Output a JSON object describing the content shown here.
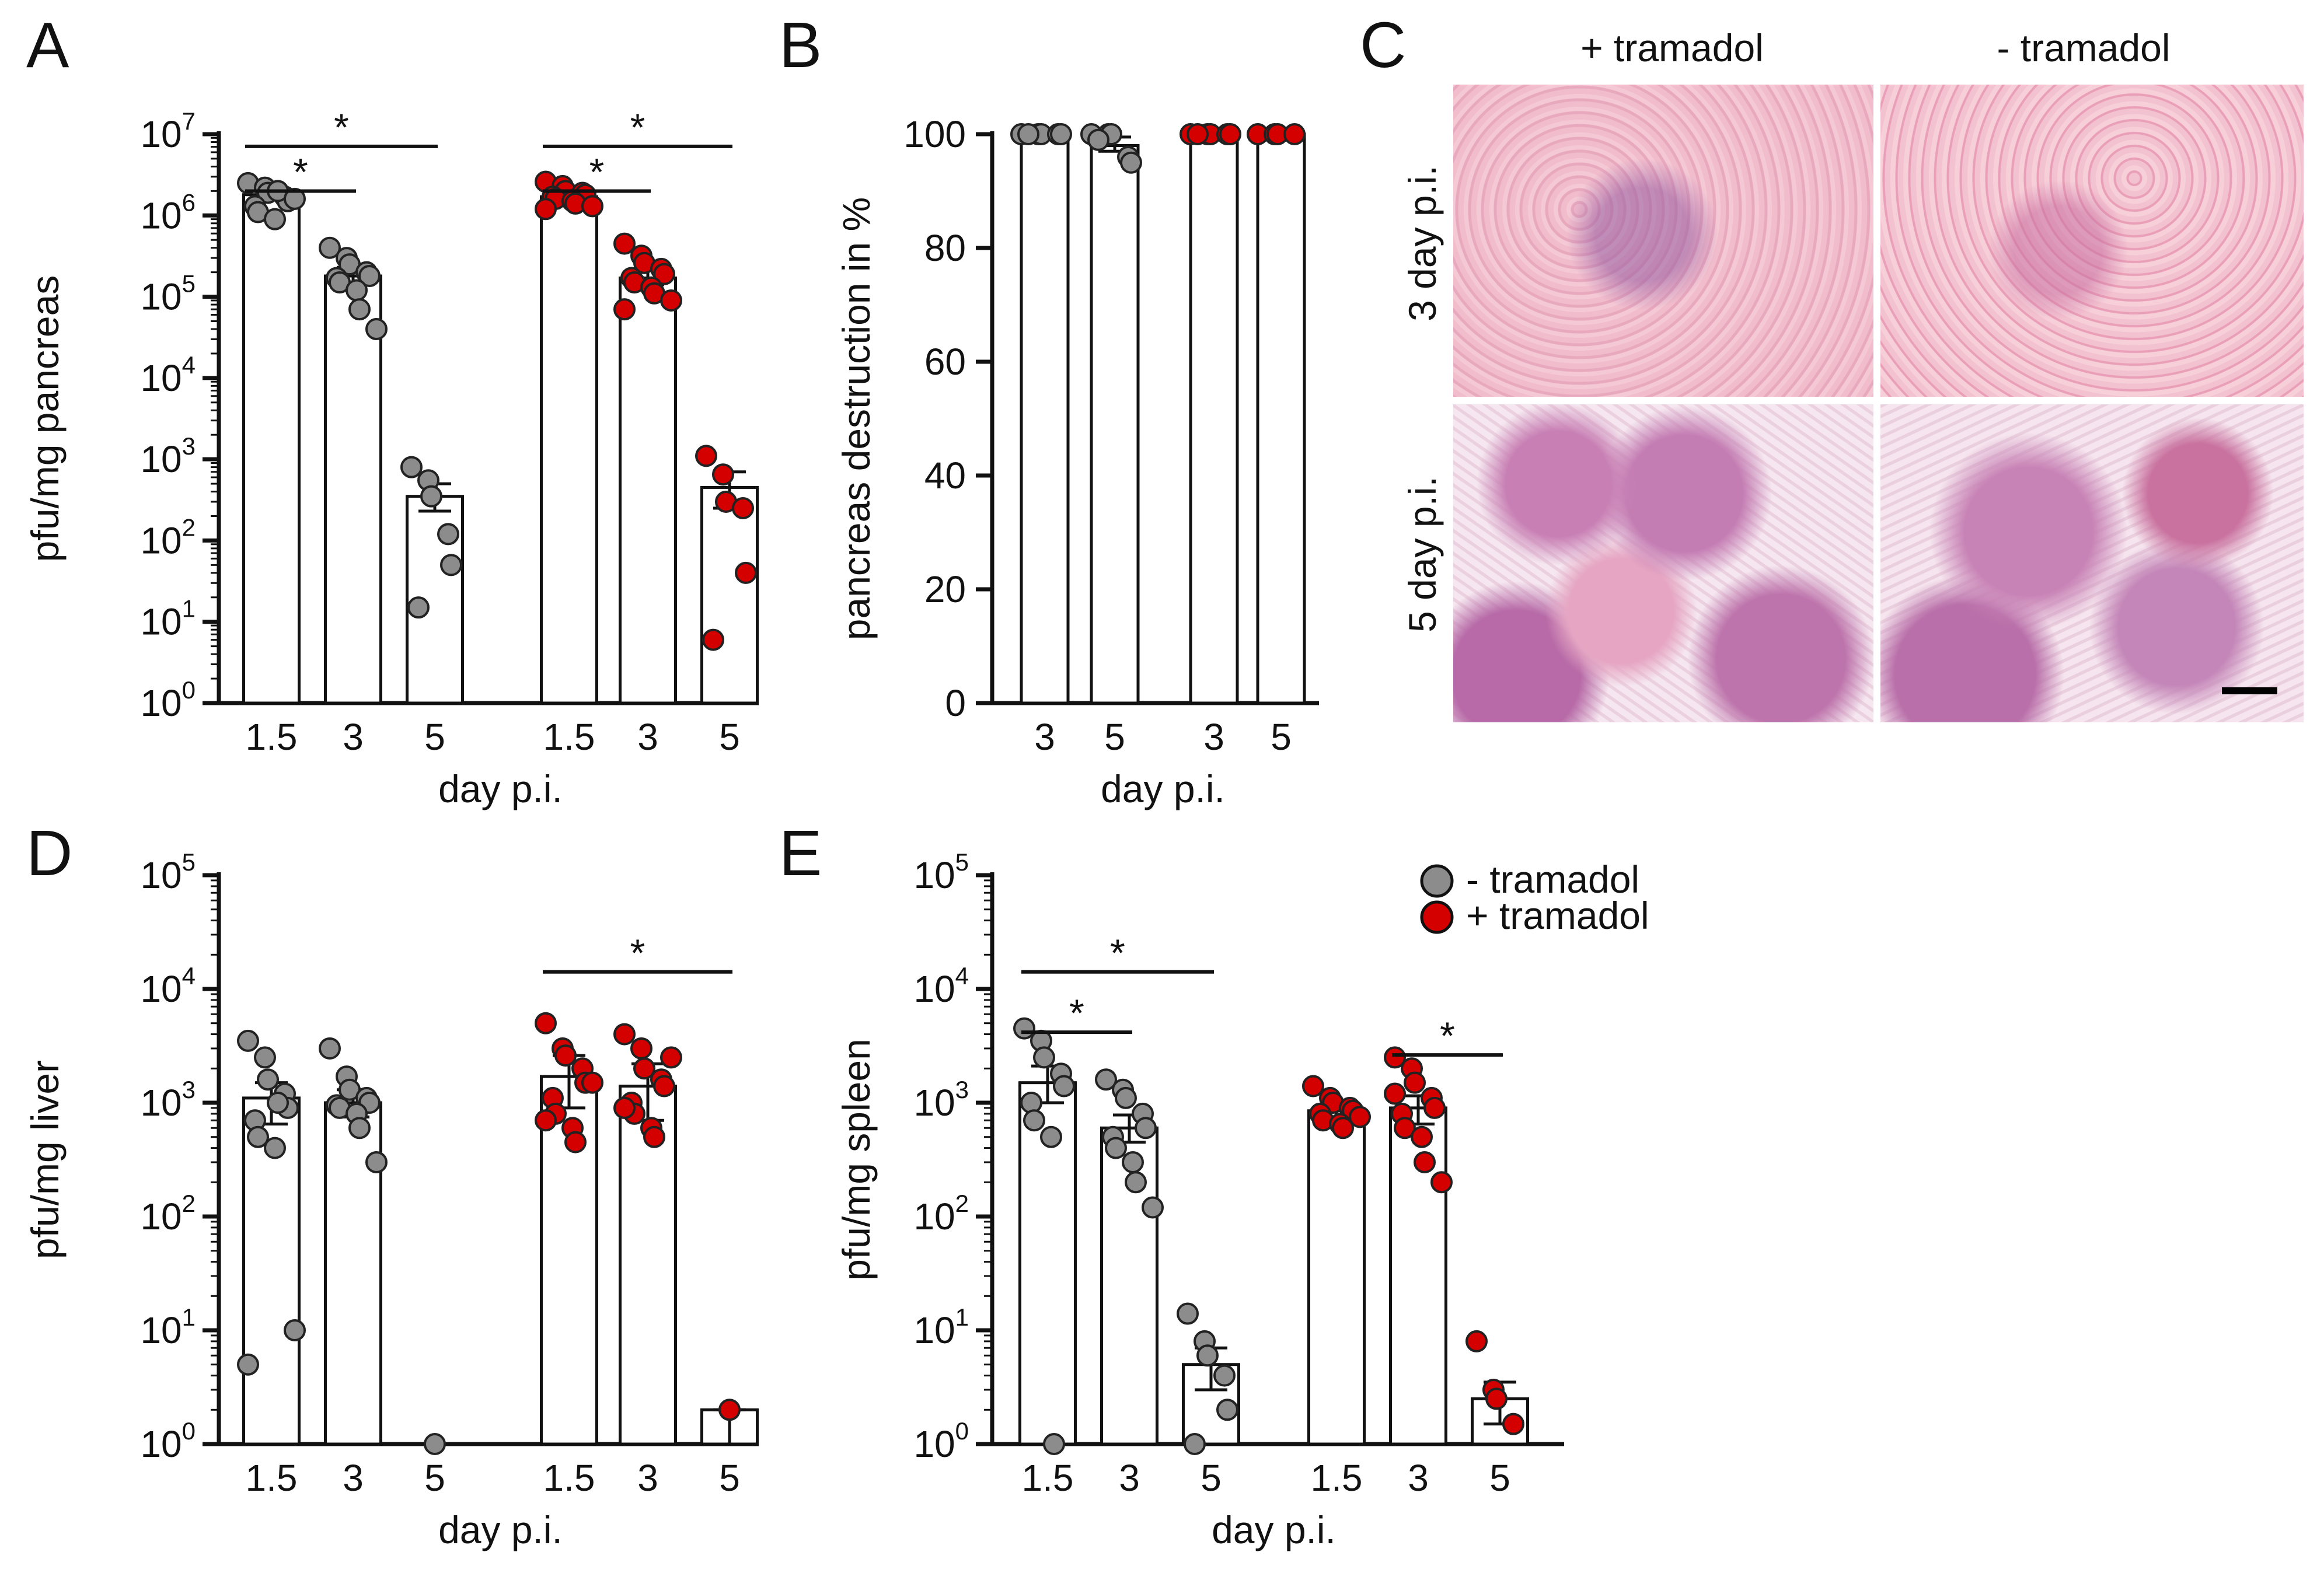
{
  "panels": {
    "A": "A",
    "B": "B",
    "C": "C",
    "D": "D",
    "E": "E"
  },
  "colors": {
    "minus_tramadol": "#8c8c8c",
    "plus_tramadol": "#d40000"
  },
  "histology": {
    "col_labels": [
      "+ tramadol",
      "- tramadol"
    ],
    "row_labels": [
      "3 day p.i.",
      "5 day p.i."
    ]
  },
  "legend": {
    "minus_label": "- tramadol",
    "plus_label": "+ tramadol"
  },
  "chart_data": [
    {
      "id": "A",
      "type": "bar",
      "yscale": "log",
      "ylabel": "pfu/mg pancreas",
      "xlabel": "day p.i.",
      "ylim": [
        1,
        10000000
      ],
      "ytick_powers": [
        0,
        1,
        2,
        3,
        4,
        5,
        6,
        7
      ],
      "categories": [
        "1.5",
        "3",
        "5",
        "1.5",
        "3",
        "5"
      ],
      "series": [
        {
          "name": "- tramadol",
          "color": "#8c8c8c",
          "groups": [
            {
              "label": "1.5",
              "mean": 1800000,
              "sem_low": 1600000,
              "sem_high": 2000000,
              "points": [
                2500000,
                2200000,
                1900000,
                1700000,
                1500000,
                1300000,
                1100000,
                900000,
                2000000,
                1600000
              ]
            },
            {
              "label": "3",
              "mean": 180000,
              "sem_low": 140000,
              "sem_high": 230000,
              "points": [
                400000,
                300000,
                250000,
                200000,
                180000,
                170000,
                150000,
                120000,
                70000,
                40000
              ]
            },
            {
              "label": "5",
              "mean": 350,
              "sem_low": 230,
              "sem_high": 500,
              "points": [
                800,
                550,
                350,
                120,
                50,
                15
              ]
            }
          ]
        },
        {
          "name": "+ tramadol",
          "color": "#d40000",
          "groups": [
            {
              "label": "1.5",
              "mean": 1700000,
              "sem_low": 1550000,
              "sem_high": 1900000,
              "points": [
                2600000,
                2300000,
                2000000,
                1900000,
                1800000,
                1700000,
                1600000,
                1500000,
                1400000,
                1300000,
                1200000
              ]
            },
            {
              "label": "3",
              "mean": 170000,
              "sem_low": 140000,
              "sem_high": 210000,
              "points": [
                450000,
                320000,
                260000,
                220000,
                190000,
                170000,
                150000,
                130000,
                110000,
                90000,
                70000
              ]
            },
            {
              "label": "5",
              "mean": 450,
              "sem_low": 250,
              "sem_high": 700,
              "points": [
                1100,
                650,
                300,
                250,
                40,
                6
              ]
            }
          ]
        }
      ],
      "significance": [
        {
          "from": 0,
          "to": 2,
          "level": 6.85,
          "label": "*"
        },
        {
          "from": 0,
          "to": 1,
          "level": 6.3,
          "label": "*"
        },
        {
          "from": 3,
          "to": 5,
          "level": 6.85,
          "label": "*"
        },
        {
          "from": 3,
          "to": 4,
          "level": 6.3,
          "label": "*"
        }
      ]
    },
    {
      "id": "B",
      "type": "bar",
      "yscale": "linear",
      "ylabel": "pancreas destruction in %",
      "xlabel": "day p.i.",
      "ylim": [
        0,
        100
      ],
      "yticks": [
        0,
        20,
        40,
        60,
        80,
        100
      ],
      "categories": [
        "3",
        "5",
        "3",
        "5"
      ],
      "series": [
        {
          "name": "- tramadol",
          "color": "#8c8c8c",
          "groups": [
            {
              "label": "3",
              "mean": 100,
              "sem_low": 100,
              "sem_high": 100,
              "points": [
                100,
                100,
                100,
                100,
                100,
                100
              ]
            },
            {
              "label": "5",
              "mean": 98,
              "sem_low": 97,
              "sem_high": 99.5,
              "points": [
                100,
                100,
                100,
                96,
                95,
                99
              ]
            }
          ]
        },
        {
          "name": "+ tramadol",
          "color": "#d40000",
          "groups": [
            {
              "label": "3",
              "mean": 100,
              "sem_low": 100,
              "sem_high": 100,
              "points": [
                100,
                100,
                100,
                100,
                100,
                100
              ]
            },
            {
              "label": "5",
              "mean": 100,
              "sem_low": 100,
              "sem_high": 100,
              "points": [
                100,
                100,
                100,
                100
              ]
            }
          ]
        }
      ],
      "significance": []
    },
    {
      "id": "D",
      "type": "bar",
      "yscale": "log",
      "ylabel": "pfu/mg liver",
      "xlabel": "day p.i.",
      "ylim": [
        1,
        100000
      ],
      "ytick_powers": [
        0,
        1,
        2,
        3,
        4,
        5
      ],
      "categories": [
        "1.5",
        "3",
        "5",
        "1.5",
        "3",
        "5"
      ],
      "series": [
        {
          "name": "- tramadol",
          "color": "#8c8c8c",
          "groups": [
            {
              "label": "1.5",
              "mean": 1100,
              "sem_low": 650,
              "sem_high": 1500,
              "points": [
                3500,
                2500,
                1600,
                1200,
                900,
                700,
                500,
                400,
                1000,
                10,
                5
              ]
            },
            {
              "label": "3",
              "mean": 1000,
              "sem_low": 750,
              "sem_high": 1300,
              "points": [
                3000,
                1700,
                1300,
                1100,
                1000,
                950,
                900,
                800,
                600,
                300
              ]
            },
            {
              "label": "5",
              "mean": 1,
              "sem_low": 1,
              "sem_high": 1,
              "points": [
                1
              ]
            }
          ]
        },
        {
          "name": "+ tramadol",
          "color": "#d40000",
          "groups": [
            {
              "label": "1.5",
              "mean": 1700,
              "sem_low": 900,
              "sem_high": 2600,
              "points": [
                5000,
                3000,
                2600,
                2000,
                1500,
                1100,
                800,
                600,
                450,
                1500,
                700
              ]
            },
            {
              "label": "3",
              "mean": 1400,
              "sem_low": 700,
              "sem_high": 2200,
              "points": [
                4000,
                3000,
                2000,
                1600,
                1400,
                1000,
                800,
                600,
                500,
                2500,
                900
              ]
            },
            {
              "label": "5",
              "mean": 2,
              "sem_low": 1,
              "sem_high": 2,
              "points": [
                2
              ]
            }
          ]
        }
      ],
      "significance": [
        {
          "from": 3,
          "to": 5,
          "level": 4.15,
          "label": "*"
        }
      ]
    },
    {
      "id": "E",
      "type": "bar",
      "yscale": "log",
      "ylabel": "pfu/mg spleen",
      "xlabel": "day p.i.",
      "ylim": [
        1,
        100000
      ],
      "ytick_powers": [
        0,
        1,
        2,
        3,
        4,
        5
      ],
      "categories": [
        "1.5",
        "3",
        "5",
        "1.5",
        "3",
        "5"
      ],
      "series": [
        {
          "name": "- tramadol",
          "color": "#8c8c8c",
          "groups": [
            {
              "label": "1.5",
              "mean": 1500,
              "sem_low": 1000,
              "sem_high": 2100,
              "points": [
                4500,
                3500,
                2500,
                1800,
                1400,
                1000,
                700,
                500,
                1
              ]
            },
            {
              "label": "3",
              "mean": 600,
              "sem_low": 450,
              "sem_high": 780,
              "points": [
                1600,
                1300,
                1100,
                800,
                600,
                500,
                400,
                300,
                200,
                120
              ]
            },
            {
              "label": "5",
              "mean": 5,
              "sem_low": 3,
              "sem_high": 7,
              "points": [
                14,
                8,
                6,
                4,
                2,
                1
              ]
            }
          ]
        },
        {
          "name": "+ tramadol",
          "color": "#d40000",
          "groups": [
            {
              "label": "1.5",
              "mean": 850,
              "sem_low": 750,
              "sem_high": 950,
              "points": [
                1400,
                1100,
                1000,
                900,
                850,
                800,
                700,
                650,
                600,
                750
              ]
            },
            {
              "label": "3",
              "mean": 900,
              "sem_low": 650,
              "sem_high": 1150,
              "points": [
                2500,
                2000,
                1500,
                1100,
                900,
                800,
                600,
                500,
                300,
                200,
                1200
              ]
            },
            {
              "label": "5",
              "mean": 2.5,
              "sem_low": 1.5,
              "sem_high": 3.5,
              "points": [
                8,
                3,
                2.5,
                1.5
              ]
            }
          ]
        }
      ],
      "significance": [
        {
          "from": 0,
          "to": 2,
          "level": 4.15,
          "label": "*"
        },
        {
          "from": 0,
          "to": 1,
          "level": 3.62,
          "label": "*"
        },
        {
          "from": 4,
          "to": 5,
          "level": 3.42,
          "label": "*"
        }
      ]
    }
  ]
}
